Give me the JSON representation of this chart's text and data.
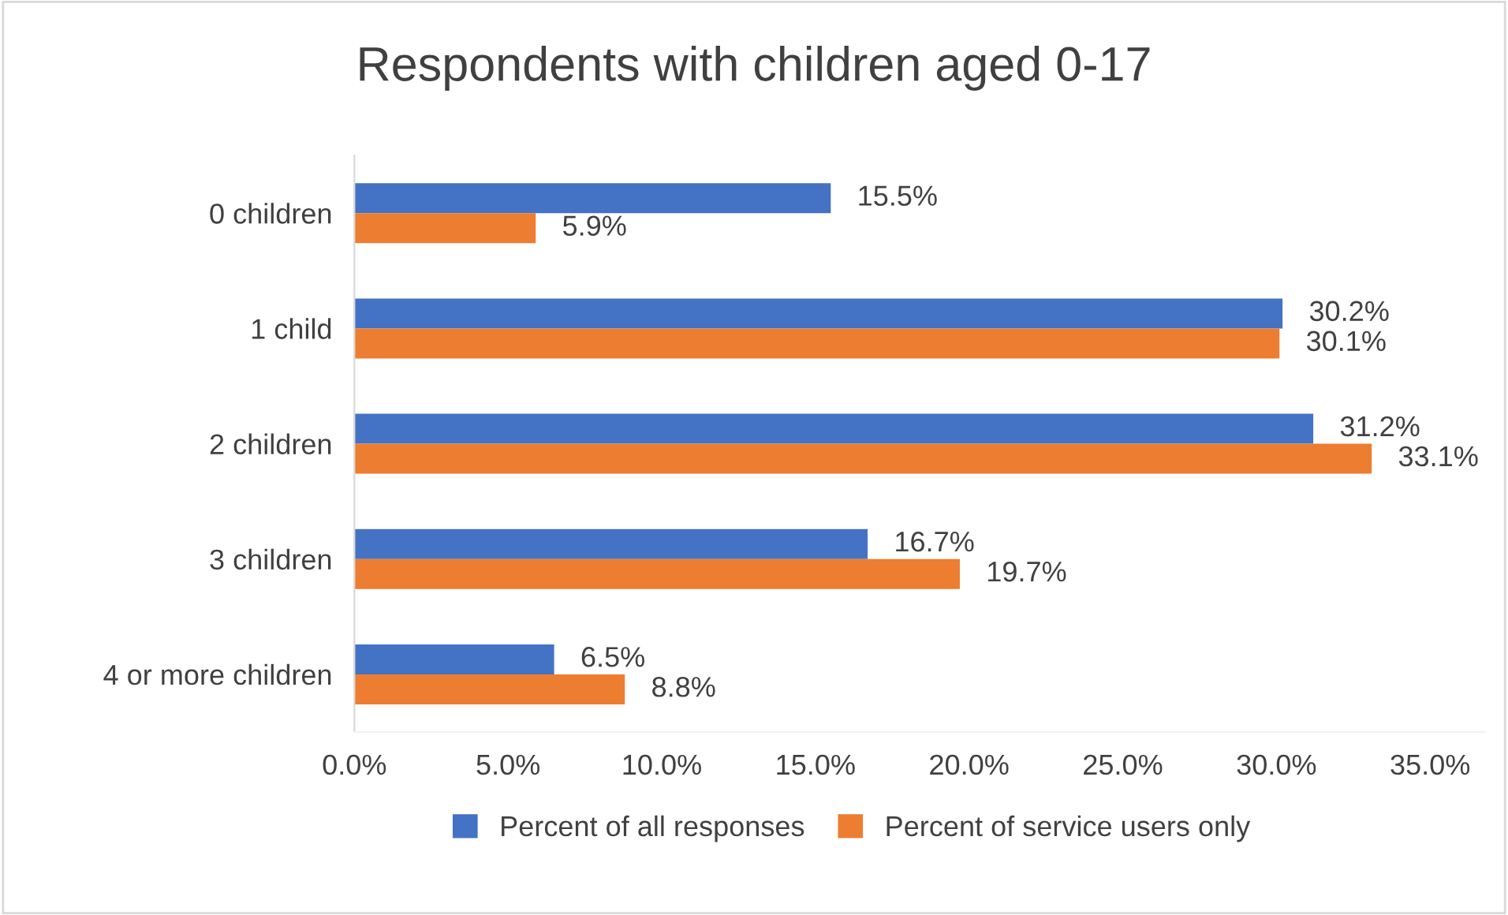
{
  "chart_data": {
    "type": "bar",
    "orientation": "horizontal",
    "title": "Respondents with children aged 0-17",
    "categories": [
      "0 children",
      "1 child",
      "2 children",
      "3 children",
      "4 or more children"
    ],
    "series": [
      {
        "name": "Percent of all responses",
        "color": "#4472c4",
        "values": [
          15.5,
          30.2,
          31.2,
          16.7,
          6.5
        ],
        "value_labels": [
          "15.5%",
          "30.2%",
          "31.2%",
          "16.7%",
          "6.5%"
        ]
      },
      {
        "name": "Percent of service users only",
        "color": "#ed7d31",
        "values": [
          5.9,
          30.1,
          33.1,
          19.7,
          8.8
        ],
        "value_labels": [
          "5.9%",
          "30.1%",
          "33.1%",
          "19.7%",
          "8.8%"
        ]
      }
    ],
    "xlim": [
      0,
      36.8
    ],
    "xticks": [
      {
        "value": 0,
        "label": "0.0%"
      },
      {
        "value": 5,
        "label": "5.0%"
      },
      {
        "value": 10,
        "label": "10.0%"
      },
      {
        "value": 15,
        "label": "15.0%"
      },
      {
        "value": 20,
        "label": "20.0%"
      },
      {
        "value": 25,
        "label": "25.0%"
      },
      {
        "value": 30,
        "label": "30.0%"
      },
      {
        "value": 35,
        "label": "35.0%"
      }
    ],
    "grid": false,
    "legend": "bottom"
  }
}
